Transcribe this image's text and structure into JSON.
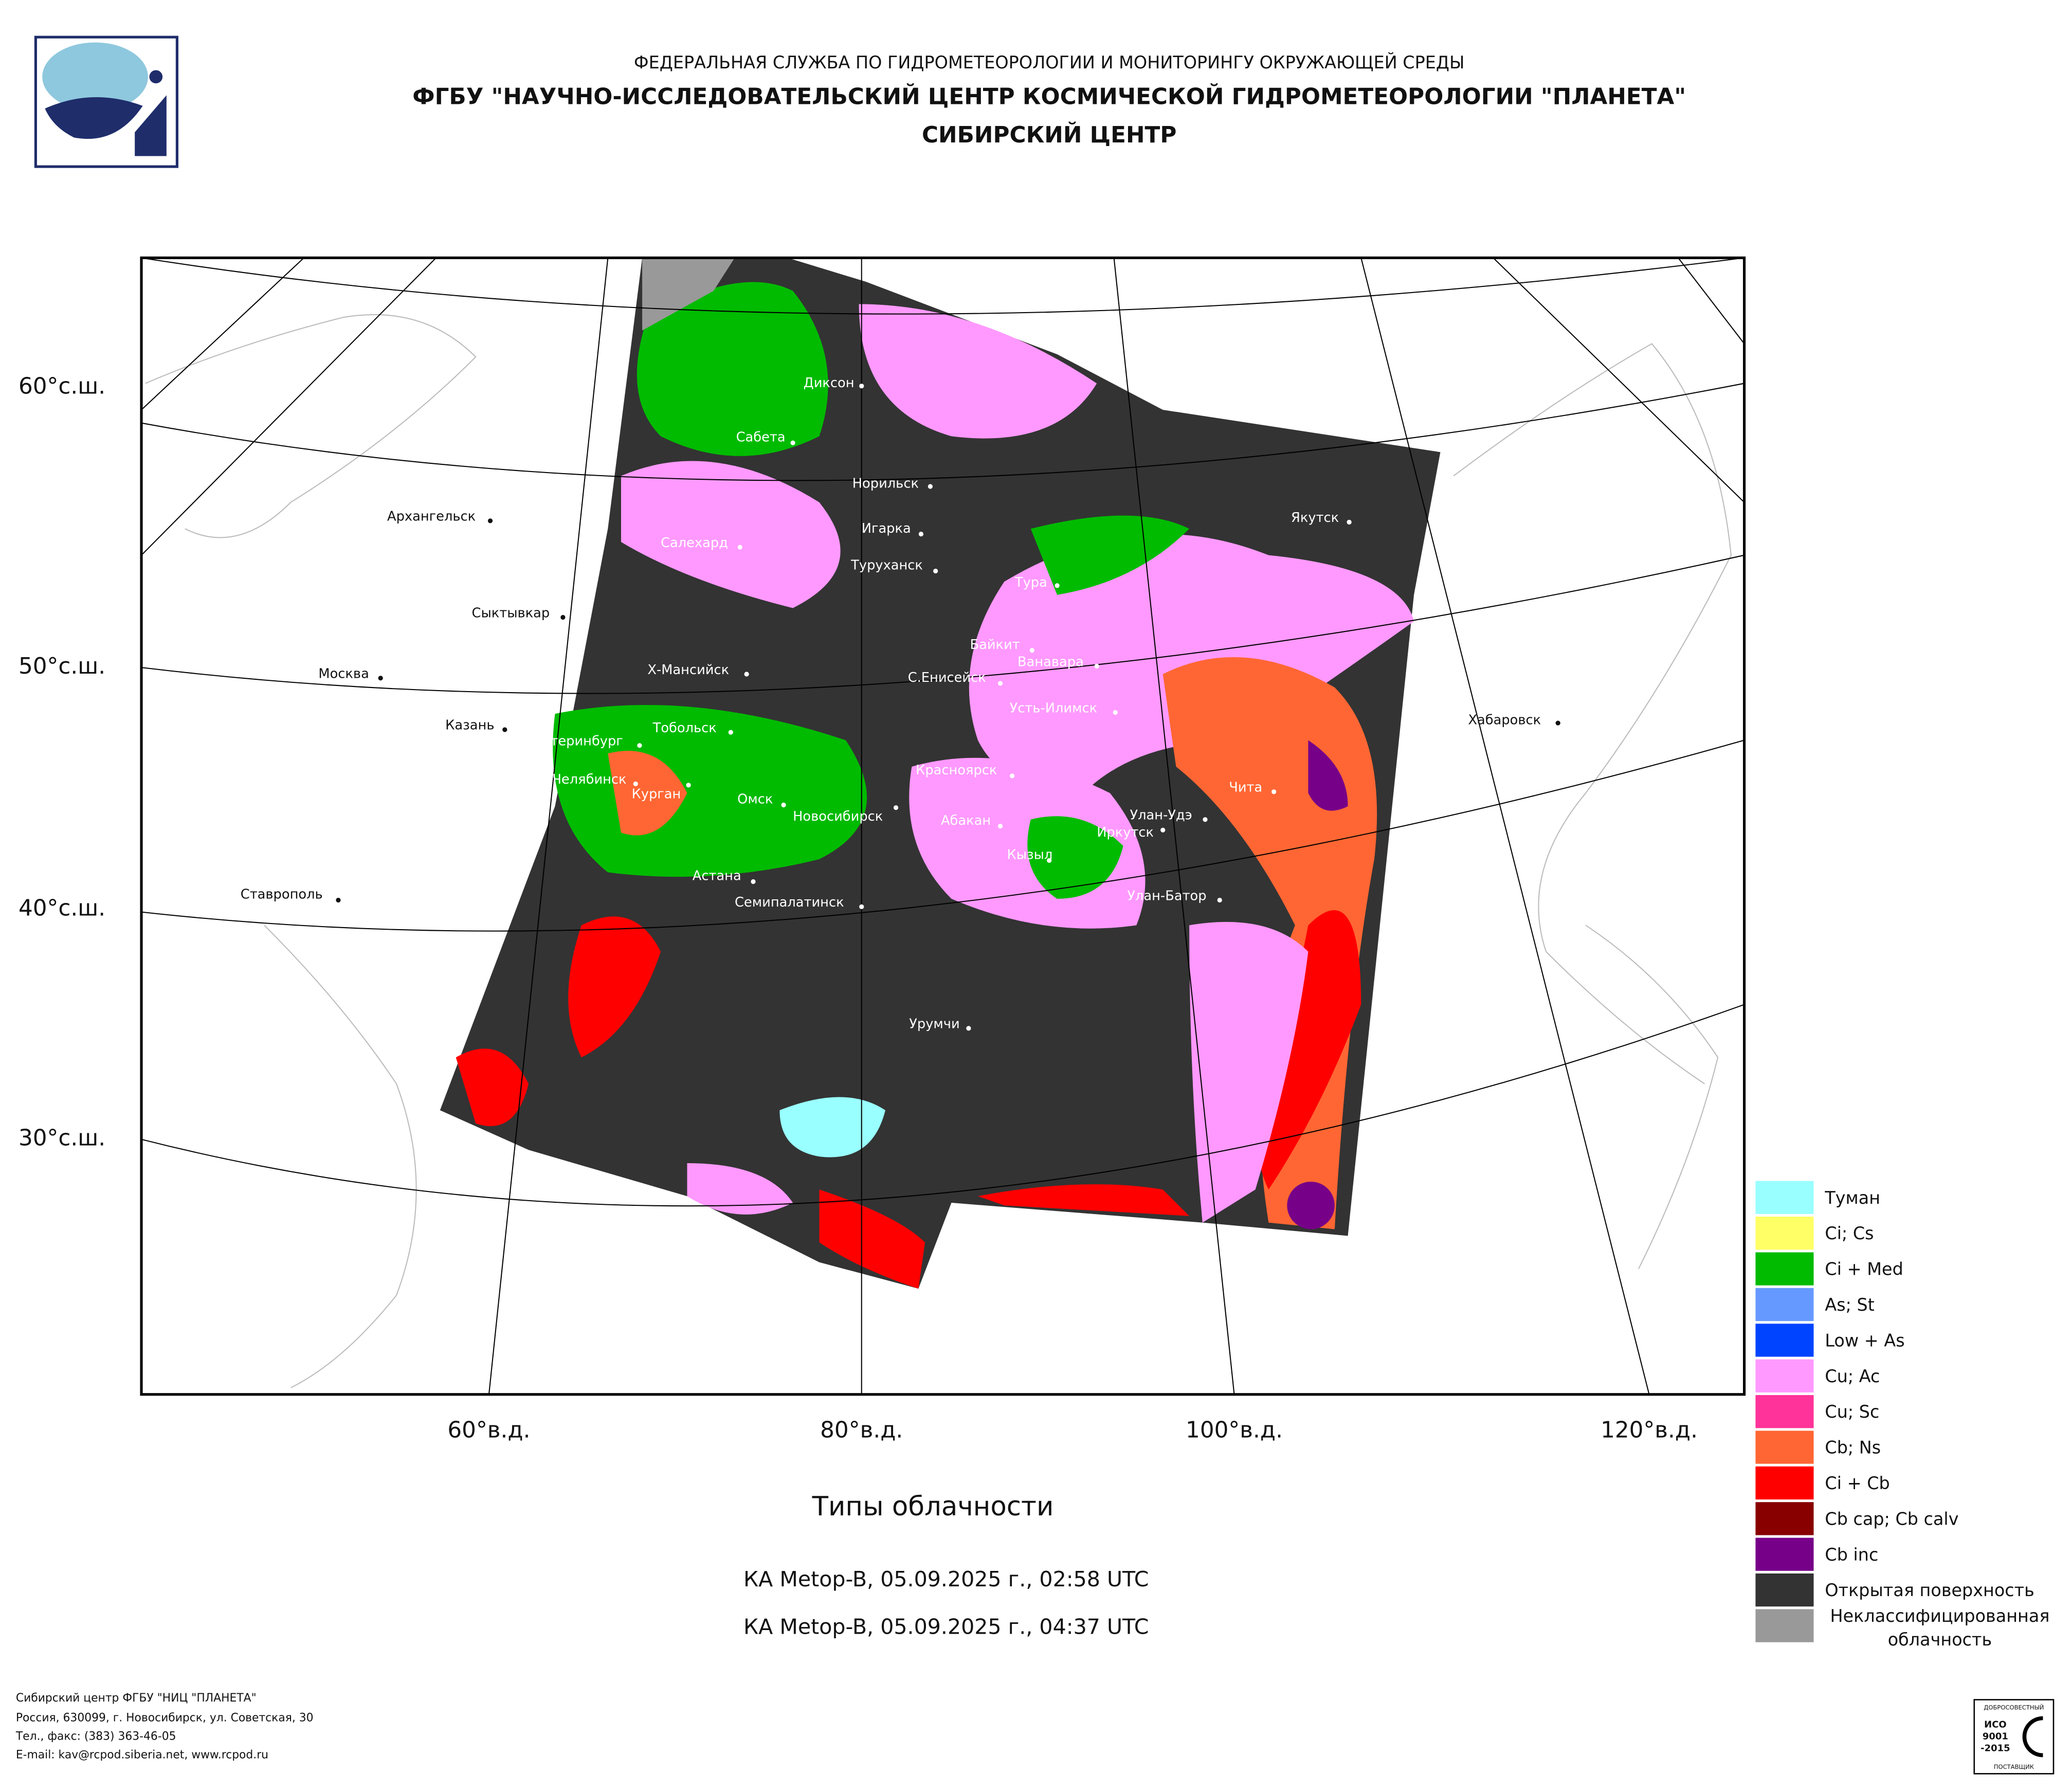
{
  "header": {
    "line1": "ФЕДЕРАЛЬНАЯ СЛУЖБА ПО ГИДРОМЕТЕОРОЛОГИИ И МОНИТОРИНГУ ОКРУЖАЮЩЕЙ СРЕДЫ",
    "line2": "ФГБУ \"НАУЧНО-ИССЛЕДОВАТЕЛЬСКИЙ ЦЕНТР КОСМИЧЕСКОЙ ГИДРОМЕТЕОРОЛОГИИ \"ПЛАНЕТА\"",
    "line3": "СИБИРСКИЙ ЦЕНТР"
  },
  "map": {
    "lat_labels": [
      "60°с.ш.",
      "50°с.ш.",
      "40°с.ш.",
      "30°с.ш."
    ],
    "lon_labels": [
      "60°в.д.",
      "80°в.д.",
      "100°в.д.",
      "120°в.д."
    ],
    "cities": [
      "Диксон",
      "Сабета",
      "Норильск",
      "Архангельск",
      "Игарка",
      "Салехард",
      "Якутск",
      "Туруханск",
      "Тура",
      "Сыктывкар",
      "Байкит",
      "Ванавара",
      "Москва",
      "Х-Мансийск",
      "С.Енисейск",
      "Усть-Илимск",
      "Хабаровск",
      "Казань",
      "Тобольск",
      "Екатеринбург",
      "Красноярск",
      "Чита",
      "Челябинск",
      "Курган",
      "Омск",
      "Новосибирск",
      "Абакан",
      "Улан-Удэ",
      "Иркутск",
      "Кызыл",
      "Астана",
      "Ставрополь",
      "Семипалатинск",
      "Улан-Батор",
      "Урумчи"
    ]
  },
  "legend": [
    {
      "label": "Туман",
      "color": "#99ffff"
    },
    {
      "label": "Ci; Cs",
      "color": "#ffff66"
    },
    {
      "label": "Ci + Med",
      "color": "#00bb00"
    },
    {
      "label": "As; St",
      "color": "#6699ff"
    },
    {
      "label": "Low + As",
      "color": "#0044ff"
    },
    {
      "label": "Cu; Ac",
      "color": "#ff99ff"
    },
    {
      "label": "Cu; Sc",
      "color": "#ff3399"
    },
    {
      "label": "Cb; Ns",
      "color": "#ff6633"
    },
    {
      "label": "Ci + Cb",
      "color": "#ff0000"
    },
    {
      "label": "Cb cap; Cb calv",
      "color": "#880000"
    },
    {
      "label": "Cb inc",
      "color": "#770088"
    },
    {
      "label": "Открытая поверхность",
      "color": "#333333"
    },
    {
      "label": "Неклассифицированная облачность",
      "color": "#999999"
    }
  ],
  "title": "Типы облачности",
  "passes": [
    "КА Metop-B, 05.09.2025 г., 02:58 UTC",
    "КА Metop-B, 05.09.2025 г., 04:37 UTC"
  ],
  "footer": [
    "Сибирский центр ФГБУ \"НИЦ \"ПЛАНЕТА\"",
    "Россия, 630099, г. Новосибирск, ул. Советская, 30",
    "Тел., факс: (383) 363-46-05",
    "E-mail: kav@rcpod.siberia.net, www.rcpod.ru"
  ],
  "certificate": {
    "top": "ДОБРОСОВЕСТНЫЙ",
    "iso": "ИСО",
    "number": "9001",
    "year": "-2015",
    "bottom": "ПОСТАВЩИК"
  }
}
